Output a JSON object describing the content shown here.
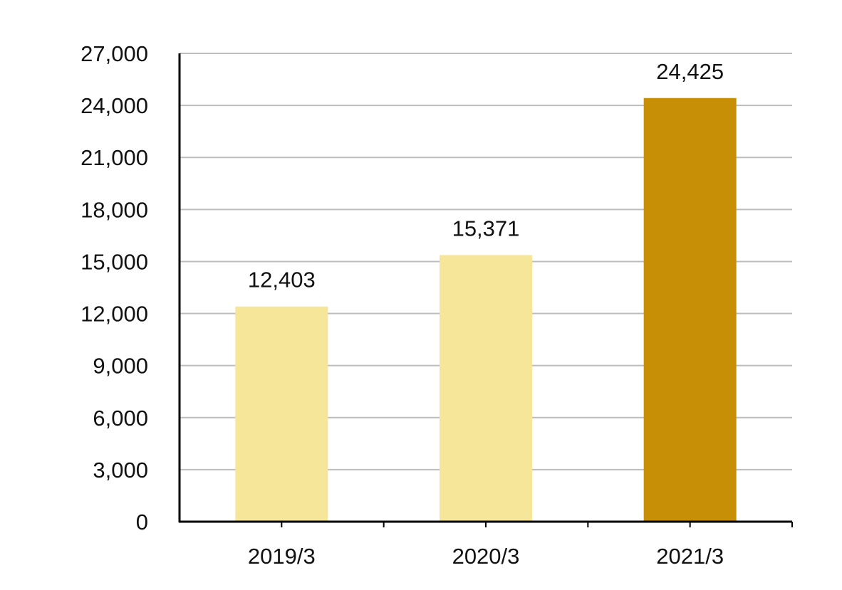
{
  "chart_data": {
    "type": "bar",
    "categories": [
      "2019/3",
      "2020/3",
      "2021/3"
    ],
    "values": [
      12403,
      15371,
      24425
    ],
    "data_labels": [
      "12,403",
      "15,371",
      "24,425"
    ],
    "y_ticks": [
      0,
      3000,
      6000,
      9000,
      12000,
      15000,
      18000,
      21000,
      24000,
      27000
    ],
    "y_tick_labels": [
      "0",
      "3,000",
      "6,000",
      "9,000",
      "12,000",
      "15,000",
      "18,000",
      "21,000",
      "24,000",
      "27,000"
    ],
    "ylim": [
      0,
      27000
    ],
    "grid": true,
    "bar_colors": [
      "#F6E699",
      "#F6E699",
      "#C78F06"
    ],
    "gridline_color": "#BDBDBD",
    "axis_color": "#000000"
  }
}
